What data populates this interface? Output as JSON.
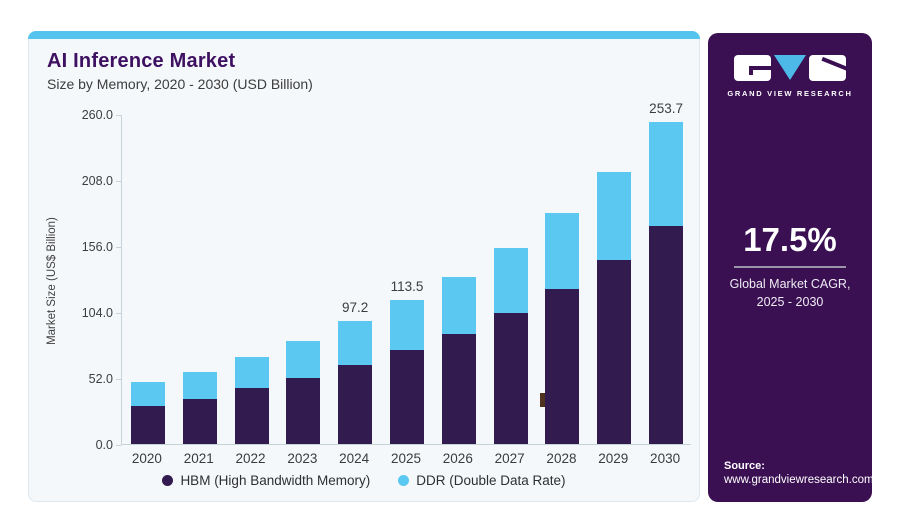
{
  "card": {
    "accent_strip_color": "#54c3ee",
    "title": "AI Inference Market",
    "subtitle": "Size by Memory, 2020 - 2030 (USD Billion)"
  },
  "chart_data": {
    "type": "bar",
    "stacked": true,
    "title": "AI Inference Market",
    "subtitle": "Size by Memory, 2020 - 2030 (USD Billion)",
    "ylabel": "Market Size (US$ Billion)",
    "categories": [
      "2020",
      "2021",
      "2022",
      "2023",
      "2024",
      "2025",
      "2026",
      "2027",
      "2028",
      "2029",
      "2030"
    ],
    "series": [
      {
        "name": "HBM (High Bandwidth Memory)",
        "color": "#321b4e",
        "values": [
          30.1,
          35.8,
          43.9,
          52.4,
          62.4,
          74.1,
          86.7,
          102.9,
          121.8,
          145.2,
          172.1
        ]
      },
      {
        "name": "DDR (Double Data Rate)",
        "color": "#5bc8f2",
        "values": [
          18.4,
          21.3,
          24.9,
          28.5,
          34.8,
          39.4,
          45.2,
          51.7,
          60.6,
          69.5,
          81.6
        ]
      }
    ],
    "totals": [
      48.5,
      57.1,
      68.8,
      80.9,
      97.2,
      113.5,
      131.9,
      154.6,
      182.4,
      214.7,
      253.7
    ],
    "data_labels": {
      "2024": "97.2",
      "2025": "113.5",
      "2030": "253.7"
    },
    "yticks": [
      "0.0",
      "52.0",
      "104.0",
      "156.0",
      "208.0",
      "260.0"
    ],
    "ylim": [
      0,
      260
    ],
    "grid": false,
    "legend_position": "bottom"
  },
  "panel": {
    "background": "#3a1053",
    "logo": {
      "brand": "GRAND VIEW RESEARCH",
      "triangle_color": "#4db9e8"
    },
    "cagr": {
      "value": "17.5%",
      "caption_line1": "Global Market CAGR,",
      "caption_line2": "2025 - 2030"
    },
    "source": {
      "label": "Source:",
      "url": "www.grandviewresearch.com"
    }
  }
}
